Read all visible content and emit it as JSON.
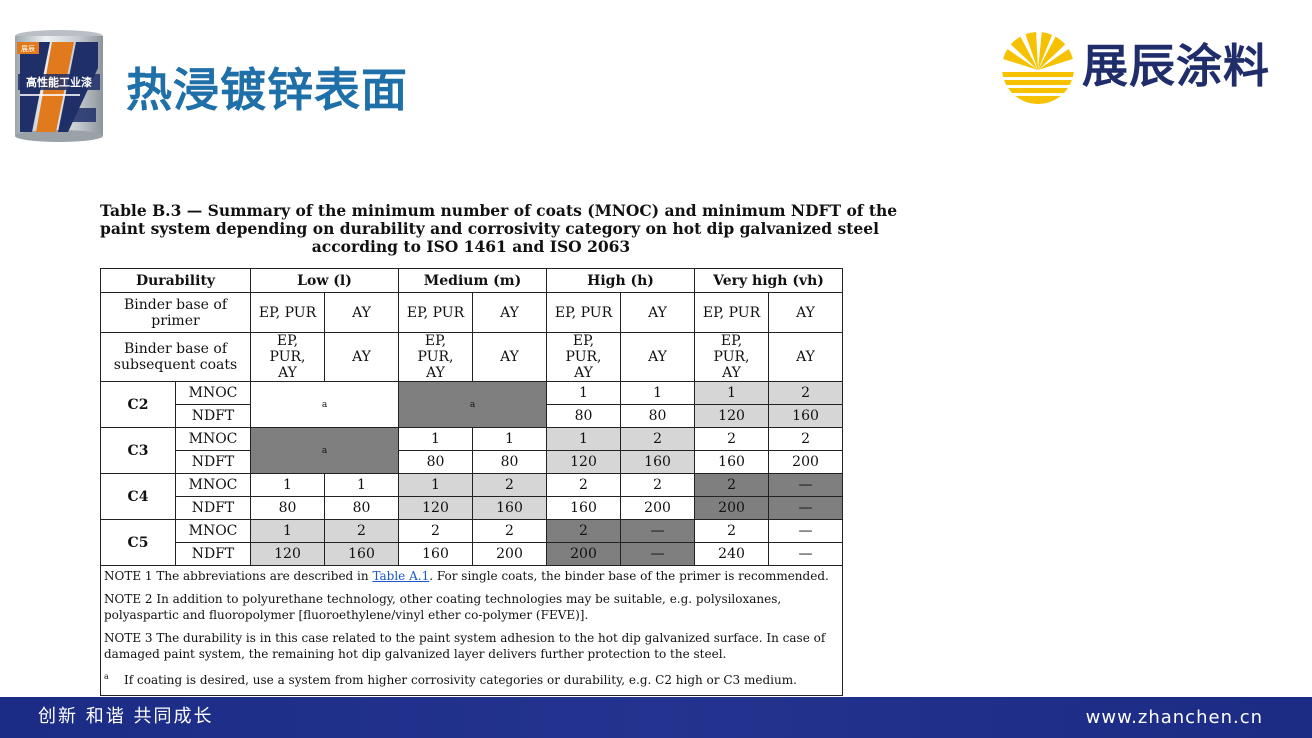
{
  "product_image": {
    "label": "高性能工业漆",
    "brand_label": "展辰",
    "icon": "paint-can-icon"
  },
  "header": {
    "title": "热浸镀锌表面"
  },
  "logo": {
    "text": "展辰涂料",
    "icon": "sun-logo-icon",
    "color": "#f6c200"
  },
  "table": {
    "title_lines": [
      "Table B.3 — Summary of the minimum number of coats (MNOC) and minimum NDFT of the",
      "paint system depending on durability and corrosivity category on hot dip galvanized steel",
      "according to ISO 1461 and ISO 2063"
    ],
    "header": {
      "durability": "Durability",
      "low": "Low (l)",
      "medium": "Medium (m)",
      "high": "High (h)",
      "very_high": "Very high (vh)"
    },
    "binder_primer": {
      "label": "Binder base of primer",
      "values": [
        "EP, PUR",
        "AY",
        "EP, PUR",
        "AY",
        "EP, PUR",
        "AY",
        "EP, PUR",
        "AY"
      ]
    },
    "binder_subsequent": {
      "label": "Binder base of subsequent coats",
      "values": [
        "EP, PUR, AY",
        "AY",
        "EP, PUR, AY",
        "AY",
        "EP, PUR, AY",
        "AY",
        "EP, PUR, AY",
        "AY"
      ]
    },
    "row_labels": {
      "mnoc": "MNOC",
      "ndft": "NDFT"
    },
    "footnote_mark": "a",
    "categories": [
      {
        "name": "C2",
        "high": {
          "mnoc": [
            "1",
            "1"
          ],
          "ndft": [
            "80",
            "80"
          ]
        },
        "very_high": {
          "mnoc": [
            "1",
            "2"
          ],
          "ndft": [
            "120",
            "160"
          ]
        }
      },
      {
        "name": "C3",
        "medium": {
          "mnoc": [
            "1",
            "1"
          ],
          "ndft": [
            "80",
            "80"
          ]
        },
        "high": {
          "mnoc": [
            "1",
            "2"
          ],
          "ndft": [
            "120",
            "160"
          ]
        },
        "very_high": {
          "mnoc": [
            "2",
            "2"
          ],
          "ndft": [
            "160",
            "200"
          ]
        }
      },
      {
        "name": "C4",
        "low": {
          "mnoc": [
            "1",
            "1"
          ],
          "ndft": [
            "80",
            "80"
          ]
        },
        "medium": {
          "mnoc": [
            "1",
            "2"
          ],
          "ndft": [
            "120",
            "160"
          ]
        },
        "high": {
          "mnoc": [
            "2",
            "2"
          ],
          "ndft": [
            "160",
            "200"
          ]
        },
        "very_high": {
          "mnoc": [
            "2",
            "—"
          ],
          "ndft": [
            "200",
            "—"
          ]
        }
      },
      {
        "name": "C5",
        "low": {
          "mnoc": [
            "1",
            "2"
          ],
          "ndft": [
            "120",
            "160"
          ]
        },
        "medium": {
          "mnoc": [
            "2",
            "2"
          ],
          "ndft": [
            "160",
            "200"
          ]
        },
        "high": {
          "mnoc": [
            "2",
            "—"
          ],
          "ndft": [
            "200",
            "—"
          ]
        },
        "very_high": {
          "mnoc": [
            "2",
            "—"
          ],
          "ndft": [
            "240",
            "—"
          ]
        }
      }
    ],
    "notes": {
      "n1_prefix": "NOTE 1   The abbreviations are described in ",
      "n1_link": "Table A.1",
      "n1_suffix": ". For single coats, the binder base of the primer is recommended.",
      "n2": "NOTE 2   In addition to polyurethane technology, other coating technologies may be suitable, e.g. polysiloxanes, polyaspartic and fluoropolymer [fluoroethylene/vinyl ether co-polymer (FEVE)].",
      "n3": "NOTE 3   The durability is in this case related to the paint system adhesion to the hot dip galvanized surface. In case of damaged paint system, the remaining hot dip galvanized layer delivers further protection to the steel.",
      "na_mark": "a",
      "na_text": "If coating is desired, use a system from higher corrosivity categories or durability, e.g. C2 high or C3 medium."
    },
    "colors": {
      "light_shade": "#d6d6d6",
      "dark_shade": "#7f7f7f",
      "link": "#1a57c9"
    }
  },
  "footer": {
    "slogan": "创新 和谐 共同成长",
    "url": "www.zhanchen.cn",
    "color": "#1f2d85"
  }
}
